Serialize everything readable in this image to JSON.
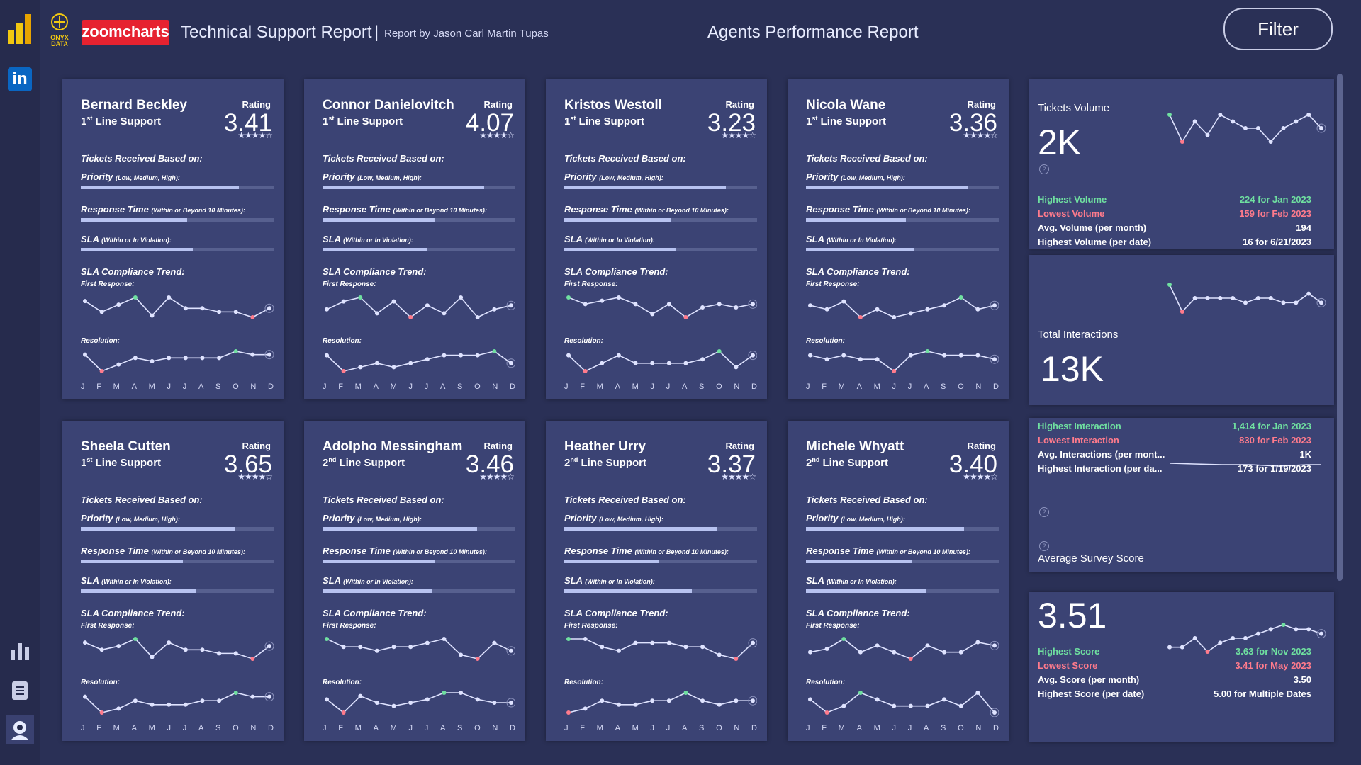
{
  "header": {
    "brand": "zoomcharts",
    "onyx_line1": "ONYX",
    "onyx_line2": "DATA",
    "title": "Technical Support Report",
    "separator": "|",
    "byline": "Report by Jason Carl Martin Tupas",
    "center_title": "Agents Performance Report",
    "filter_label": "Filter"
  },
  "sidebar": {
    "top_icons": [
      "powerbi-logo-icon",
      "linkedin-icon"
    ],
    "bottom_icons": [
      "bar-chart-icon",
      "clipboard-icon",
      "support-agent-icon"
    ],
    "linkedin_text": "in"
  },
  "labels": {
    "rating": "Rating",
    "tickets_based_on": "Tickets Received Based on:",
    "priority": "Priority",
    "priority_sub": "(Low, Medium, High):",
    "response_time": "Response Time",
    "response_time_sub": "(Within or Beyond 10 Minutes):",
    "sla": "SLA",
    "sla_sub": "(Within or In Violation):",
    "sla_trend": "SLA Compliance Trend:",
    "first_response": "First Response:",
    "resolution": "Resolution:",
    "months": [
      "J",
      "F",
      "M",
      "A",
      "M",
      "J",
      "J",
      "A",
      "S",
      "O",
      "N",
      "D"
    ]
  },
  "agents": [
    {
      "name": "Bernard Beckley",
      "line": "1",
      "line_suffix": "st",
      "role": "Line Support",
      "rating": "3.41",
      "stars": "★★★★☆",
      "priority": 0.82,
      "response": 0.55,
      "sla": 0.58,
      "first": [
        50,
        44,
        48,
        52,
        42,
        52,
        46,
        46,
        44,
        44,
        41,
        46
      ],
      "res": [
        50,
        40,
        44,
        48,
        46,
        48,
        48,
        48,
        48,
        52,
        50,
        50
      ]
    },
    {
      "name": "Connor Danielovitch",
      "line": "1",
      "line_suffix": "st",
      "role": "Line Support",
      "rating": "4.07",
      "stars": "★★★★☆",
      "priority": 0.84,
      "response": 0.58,
      "sla": 0.54,
      "first": [
        46,
        50,
        52,
        44,
        50,
        42,
        48,
        44,
        52,
        42,
        46,
        48
      ],
      "res": [
        50,
        42,
        44,
        46,
        44,
        46,
        48,
        50,
        50,
        50,
        52,
        46
      ]
    },
    {
      "name": "Kristos Westoll",
      "line": "1",
      "line_suffix": "st",
      "role": "Line Support",
      "rating": "3.23",
      "stars": "★★★★☆",
      "priority": 0.84,
      "response": 0.55,
      "sla": 0.58,
      "first": [
        50,
        46,
        48,
        50,
        46,
        40,
        46,
        38,
        44,
        46,
        44,
        46
      ],
      "res": [
        50,
        42,
        46,
        50,
        46,
        46,
        46,
        46,
        48,
        52,
        44,
        50
      ]
    },
    {
      "name": "Nicola Wane",
      "line": "1",
      "line_suffix": "st",
      "role": "Line Support",
      "rating": "3.36",
      "stars": "★★★★☆",
      "priority": 0.84,
      "response": 0.52,
      "sla": 0.56,
      "first": [
        48,
        46,
        50,
        42,
        46,
        42,
        44,
        46,
        48,
        52,
        46,
        48
      ],
      "res": [
        48,
        46,
        48,
        46,
        46,
        40,
        48,
        50,
        48,
        48,
        48,
        46
      ]
    },
    {
      "name": "Sheela Cutten",
      "line": "1",
      "line_suffix": "st",
      "role": "Line Support",
      "rating": "3.65",
      "stars": "★★★★☆",
      "priority": 0.8,
      "response": 0.53,
      "sla": 0.6,
      "first": [
        50,
        46,
        48,
        52,
        42,
        50,
        46,
        46,
        44,
        44,
        41,
        48
      ],
      "res": [
        50,
        42,
        44,
        48,
        46,
        46,
        46,
        48,
        48,
        52,
        50,
        50
      ]
    },
    {
      "name": "Adolpho Messingham",
      "line": "2",
      "line_suffix": "nd",
      "role": "Line Support",
      "rating": "3.46",
      "stars": "★★★★☆",
      "priority": 0.8,
      "response": 0.58,
      "sla": 0.57,
      "first": [
        52,
        48,
        48,
        46,
        48,
        48,
        50,
        52,
        44,
        42,
        50,
        46
      ],
      "res": [
        48,
        40,
        50,
        46,
        44,
        46,
        48,
        52,
        52,
        48,
        46,
        46
      ]
    },
    {
      "name": "Heather Urry",
      "line": "2",
      "line_suffix": "nd",
      "role": "Line Support",
      "rating": "3.37",
      "stars": "★★★★☆",
      "priority": 0.79,
      "response": 0.49,
      "sla": 0.66,
      "first": [
        50,
        50,
        46,
        44,
        48,
        48,
        48,
        46,
        46,
        42,
        40,
        48
      ],
      "res": [
        42,
        44,
        48,
        46,
        46,
        48,
        48,
        52,
        48,
        46,
        48,
        48
      ]
    },
    {
      "name": "Michele Whyatt",
      "line": "2",
      "line_suffix": "nd",
      "role": "Line Support",
      "rating": "3.40",
      "stars": "★★★★☆",
      "priority": 0.82,
      "response": 0.55,
      "sla": 0.62,
      "first": [
        44,
        46,
        52,
        44,
        48,
        44,
        40,
        48,
        44,
        44,
        50,
        48
      ],
      "res": [
        48,
        44,
        46,
        50,
        48,
        46,
        46,
        46,
        48,
        46,
        50,
        44
      ]
    }
  ],
  "summary": {
    "tickets": {
      "label": "Tickets Volume",
      "value": "2K",
      "spark": [
        52,
        44,
        50,
        46,
        52,
        50,
        48,
        48,
        44,
        48,
        50,
        52,
        48
      ],
      "rows": [
        {
          "label": "Highest Volume",
          "value": "224 for Jan 2023",
          "cls": "green"
        },
        {
          "label": "Lowest Volume",
          "value": "159 for Feb 2023",
          "cls": "red"
        },
        {
          "label": "Avg. Volume (per month)",
          "value": "194",
          "cls": ""
        },
        {
          "label": "Highest Volume (per date)",
          "value": "16 for 6/21/2023",
          "cls": ""
        }
      ]
    },
    "interactions": {
      "label": "Total Interactions",
      "value": "13K",
      "spark": [
        52,
        40,
        46,
        46,
        46,
        46,
        44,
        46,
        46,
        44,
        44,
        48,
        44
      ],
      "rows": [
        {
          "label": "Highest Interaction",
          "value": "1,414 for Jan 2023",
          "cls": "green"
        },
        {
          "label": "Lowest Interaction",
          "value": "830 for Feb 2023",
          "cls": "red"
        },
        {
          "label": "Avg. Interactions (per mont...",
          "value": "1K",
          "cls": ""
        },
        {
          "label": "Highest Interaction (per da...",
          "value": "173 for 1/19/2023",
          "cls": ""
        }
      ]
    },
    "survey": {
      "label": "Average Survey Score",
      "value": "3.51",
      "spark": [
        42,
        42,
        46,
        40,
        44,
        46,
        46,
        48,
        50,
        52,
        50,
        50,
        48
      ],
      "rows": [
        {
          "label": "Highest Score",
          "value": "3.63 for Nov 2023",
          "cls": "green"
        },
        {
          "label": "Lowest Score",
          "value": "3.41 for May 2023",
          "cls": "red"
        },
        {
          "label": "Avg. Score (per month)",
          "value": "3.50",
          "cls": ""
        },
        {
          "label": "Highest Score (per date)",
          "value": "5.00 for Multiple Dates",
          "cls": ""
        }
      ]
    }
  },
  "colors": {
    "bg": "#2a3056",
    "card": "#3b4374",
    "accent_green": "#6fe0a0",
    "accent_red": "#ff7b8c",
    "brand_red": "#e62230"
  }
}
